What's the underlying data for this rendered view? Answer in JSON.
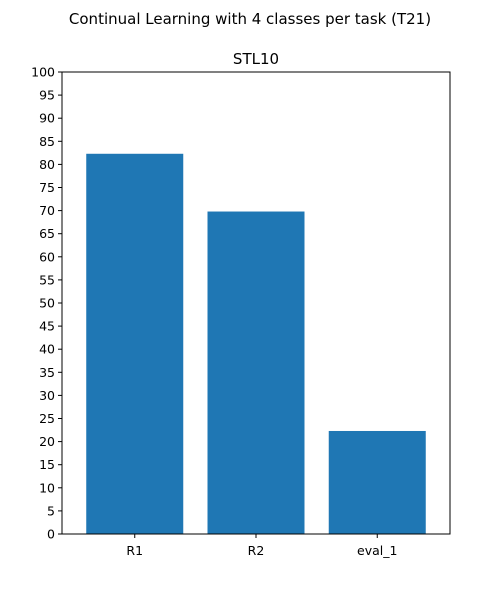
{
  "chart_data": {
    "type": "bar",
    "suptitle": "Continual Learning with 4 classes per task (T21)",
    "title": "STL10",
    "categories": [
      "R1",
      "R2",
      "eval_1"
    ],
    "values": [
      82.3,
      69.8,
      22.3
    ],
    "ylim": [
      0,
      100
    ],
    "ytick_step": 5,
    "xlabel": "",
    "ylabel": "",
    "bar_color": "#1f77b4",
    "grid": false
  }
}
